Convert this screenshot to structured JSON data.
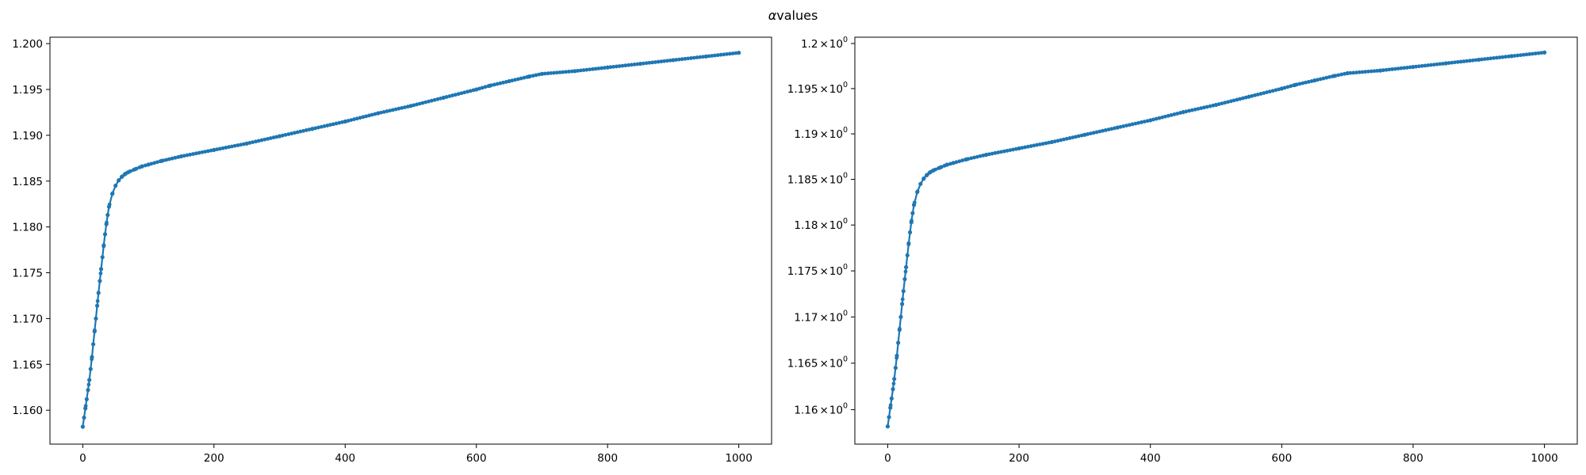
{
  "figure": {
    "title_symbol": "α",
    "title_text": "values"
  },
  "colors": {
    "series": "#1f77b4"
  },
  "chart_data": [
    {
      "type": "line",
      "yscale": "linear",
      "title": "",
      "xlabel": "",
      "ylabel": "",
      "xlim": [
        -50,
        1050
      ],
      "ylim": [
        1.1563,
        1.2007
      ],
      "xticks": [
        0,
        200,
        400,
        600,
        800,
        1000
      ],
      "xtick_labels": [
        "0",
        "200",
        "400",
        "600",
        "800",
        "1000"
      ],
      "yticks": [
        1.16,
        1.165,
        1.17,
        1.175,
        1.18,
        1.185,
        1.19,
        1.195,
        1.2
      ],
      "ytick_labels": [
        "1.160",
        "1.165",
        "1.170",
        "1.175",
        "1.180",
        "1.185",
        "1.190",
        "1.195",
        "1.200"
      ],
      "series": [
        {
          "name": "alpha",
          "marker": "o",
          "x": [
            0,
            2,
            4,
            6,
            8,
            10,
            12,
            14,
            16,
            18,
            20,
            22,
            24,
            26,
            28,
            30,
            32,
            34,
            36,
            38,
            40,
            45,
            50,
            55,
            60,
            65,
            70,
            80,
            90,
            100,
            120,
            150,
            200,
            250,
            300,
            350,
            400,
            450,
            500,
            550,
            600,
            620,
            650,
            680,
            700,
            750,
            800,
            850,
            900,
            950,
            1000
          ],
          "y": [
            1.1582,
            1.1592,
            1.1602,
            1.1612,
            1.1622,
            1.1633,
            1.1645,
            1.1658,
            1.1672,
            1.1686,
            1.17,
            1.1714,
            1.1728,
            1.1741,
            1.1754,
            1.1767,
            1.178,
            1.1792,
            1.1803,
            1.1813,
            1.1822,
            1.1836,
            1.1845,
            1.1851,
            1.1855,
            1.1858,
            1.186,
            1.1863,
            1.1866,
            1.1868,
            1.1872,
            1.1877,
            1.1884,
            1.1891,
            1.1899,
            1.1907,
            1.1915,
            1.1924,
            1.1932,
            1.1941,
            1.195,
            1.1954,
            1.1959,
            1.1964,
            1.1967,
            1.197,
            1.1974,
            1.1978,
            1.1982,
            1.1986,
            1.199
          ]
        }
      ]
    },
    {
      "type": "line",
      "yscale": "log",
      "title": "",
      "xlabel": "",
      "ylabel": "",
      "xlim": [
        -50,
        1050
      ],
      "ylim": [
        1.1563,
        1.2007
      ],
      "xticks": [
        0,
        200,
        400,
        600,
        800,
        1000
      ],
      "xtick_labels": [
        "0",
        "200",
        "400",
        "600",
        "800",
        "1000"
      ],
      "yticks": [
        1.16,
        1.165,
        1.17,
        1.175,
        1.18,
        1.185,
        1.19,
        1.195,
        1.2
      ],
      "ytick_labels": [
        "1.16",
        "1.165",
        "1.17",
        "1.175",
        "1.18",
        "1.185",
        "1.19",
        "1.195",
        "1.2"
      ],
      "ytick_label_suffix_base": "10",
      "ytick_label_suffix_exp": "0",
      "series": [
        {
          "name": "alpha",
          "marker": "o",
          "x": [
            0,
            2,
            4,
            6,
            8,
            10,
            12,
            14,
            16,
            18,
            20,
            22,
            24,
            26,
            28,
            30,
            32,
            34,
            36,
            38,
            40,
            45,
            50,
            55,
            60,
            65,
            70,
            80,
            90,
            100,
            120,
            150,
            200,
            250,
            300,
            350,
            400,
            450,
            500,
            550,
            600,
            620,
            650,
            680,
            700,
            750,
            800,
            850,
            900,
            950,
            1000
          ],
          "y": [
            1.1582,
            1.1592,
            1.1602,
            1.1612,
            1.1622,
            1.1633,
            1.1645,
            1.1658,
            1.1672,
            1.1686,
            1.17,
            1.1714,
            1.1728,
            1.1741,
            1.1754,
            1.1767,
            1.178,
            1.1792,
            1.1803,
            1.1813,
            1.1822,
            1.1836,
            1.1845,
            1.1851,
            1.1855,
            1.1858,
            1.186,
            1.1863,
            1.1866,
            1.1868,
            1.1872,
            1.1877,
            1.1884,
            1.1891,
            1.1899,
            1.1907,
            1.1915,
            1.1924,
            1.1932,
            1.1941,
            1.195,
            1.1954,
            1.1959,
            1.1964,
            1.1967,
            1.197,
            1.1974,
            1.1978,
            1.1982,
            1.1986,
            1.199
          ]
        }
      ]
    }
  ]
}
